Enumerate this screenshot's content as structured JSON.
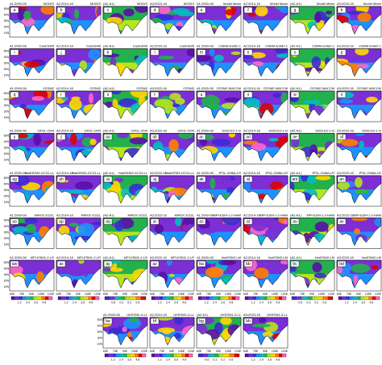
{
  "periods": [
    "A1:2000-08",
    "A2:2014-18",
    "(A2-A1)",
    "A3:2023-18"
  ],
  "rows": [
    {
      "sources": [
        "MODIS",
        "Model Mean"
      ],
      "labels": [
        "a",
        "b",
        "c",
        "d",
        "e",
        "f",
        "g",
        "h"
      ]
    },
    {
      "sources": [
        "CanESM5",
        "CNRM-ESM2-1"
      ],
      "labels": [
        "i",
        "j",
        "k",
        "l",
        "m",
        "n",
        "o",
        "p"
      ]
    },
    {
      "sources": [
        "CESM2",
        "CESM2-WACCM"
      ],
      "labels": [
        "q",
        "r",
        "s",
        "t",
        "u",
        "v",
        "w",
        "x"
      ]
    },
    {
      "sources": [
        "GFDL-CM4",
        "GISS-E2-1-G"
      ],
      "labels": [
        "y",
        "z",
        "aa",
        "ab",
        "ac",
        "ad",
        "ae",
        "af"
      ]
    },
    {
      "sources": [
        "HadGEM3-GC31-LL",
        "IPSL-CM6A-LR"
      ],
      "labels": [
        "ag",
        "ah",
        "ai",
        "aj",
        "ak",
        "al",
        "am",
        "an"
      ]
    },
    {
      "sources": [
        "MIROC-ES2L",
        "MPI-ESM-1-2-HAM"
      ],
      "labels": [
        "ao",
        "ap",
        "aq",
        "ar",
        "as",
        "at",
        "au",
        "av"
      ]
    },
    {
      "sources": [
        "MPI-ESM1-2-LR",
        "NorESM2-LM"
      ],
      "labels": [
        "aw",
        "ax",
        "ay",
        "az",
        "ba",
        "bb",
        "bc",
        "bd"
      ]
    }
  ],
  "last_row": {
    "source": "UKESM1-0-LL",
    "labels": [
      "be",
      "bf",
      "bg",
      "bh"
    ]
  },
  "lat_labels": [
    "50N",
    "40N",
    "30N",
    "20N",
    "10N"
  ],
  "lon_labels": [
    "60E",
    "75E",
    "90E",
    "105E",
    "120E"
  ],
  "colorbars": {
    "level": [
      "1.2",
      "2.4",
      "3.6",
      "4.8"
    ],
    "difference": [
      "-0.6",
      "-0.2",
      "0.2",
      "0.6"
    ]
  }
}
